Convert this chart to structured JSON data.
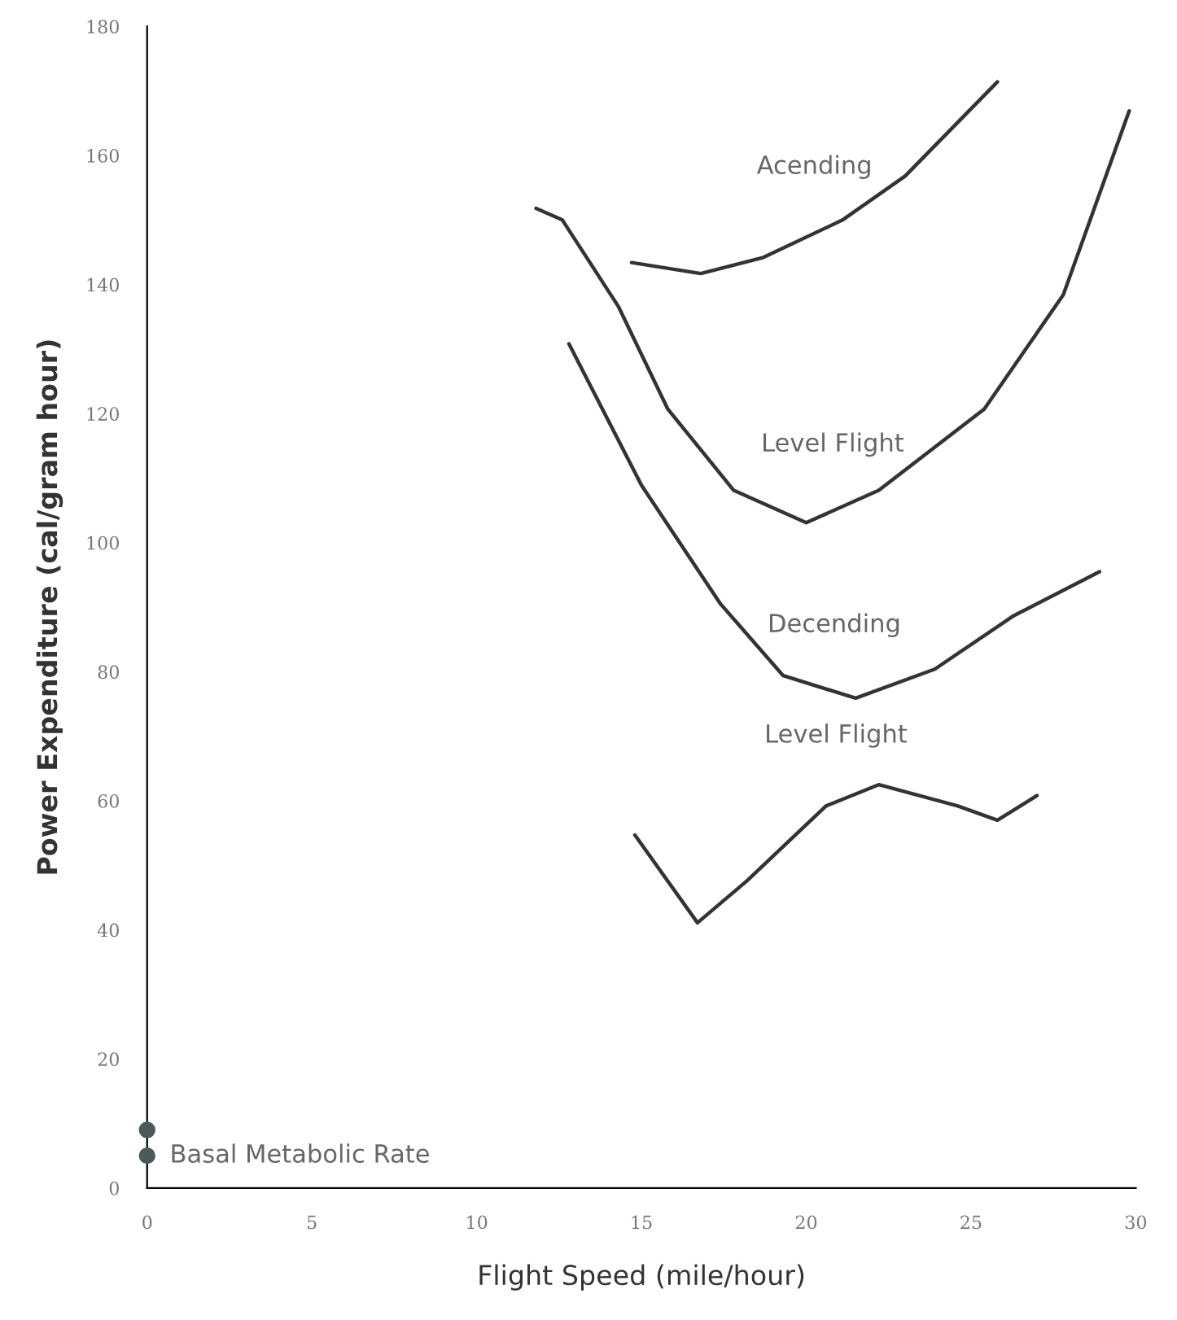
{
  "chart_data": {
    "type": "line",
    "xlabel": "Flight Speed (mile/hour)",
    "ylabel": "Power Expenditure (cal/gram hour)",
    "xlim": [
      0,
      30
    ],
    "ylim": [
      0,
      180
    ],
    "xticks": [
      0,
      5,
      10,
      15,
      20,
      25,
      30
    ],
    "yticks": [
      0,
      20,
      40,
      60,
      80,
      100,
      120,
      140,
      160,
      180
    ],
    "grid": false,
    "legend": false,
    "marker": "none",
    "line_style": "solid",
    "series": [
      {
        "name": "Acending",
        "color": "#333333",
        "x": [
          14.7,
          16.8,
          18.7,
          21.1,
          23,
          25.8
        ],
        "values": [
          143.4,
          141.7,
          144.2,
          150,
          156.8,
          171.4
        ]
      },
      {
        "name": "Level Flight",
        "color": "#333333",
        "x": [
          11.8,
          12.6,
          14.3,
          15.8,
          17.8,
          20,
          22.2,
          25.4,
          27.8,
          29.8
        ],
        "values": [
          151.8,
          150,
          136.6,
          120.7,
          108.1,
          103.1,
          108.1,
          120.7,
          138.4,
          166.9
        ]
      },
      {
        "name": "Decending",
        "color": "#333333",
        "x": [
          12.8,
          15,
          17.4,
          19.3,
          21.5,
          23.9,
          26.3,
          28.9
        ],
        "values": [
          130.8,
          108.9,
          90.5,
          79.4,
          75.9,
          80.4,
          88.7,
          95.5
        ]
      },
      {
        "name": "Level Flight",
        "color": "#333333",
        "x": [
          14.8,
          16.7,
          18.2,
          20.6,
          22.2,
          24.6,
          25.8,
          27
        ],
        "values": [
          54.7,
          41.1,
          47.6,
          59.2,
          62.5,
          59.2,
          57,
          60.8
        ]
      },
      {
        "name": "Basal Metabolic Rate",
        "type": "scatter",
        "marker": "circle",
        "color": "#4a5a5a",
        "x": [
          0,
          0
        ],
        "values": [
          9,
          5
        ]
      }
    ]
  }
}
